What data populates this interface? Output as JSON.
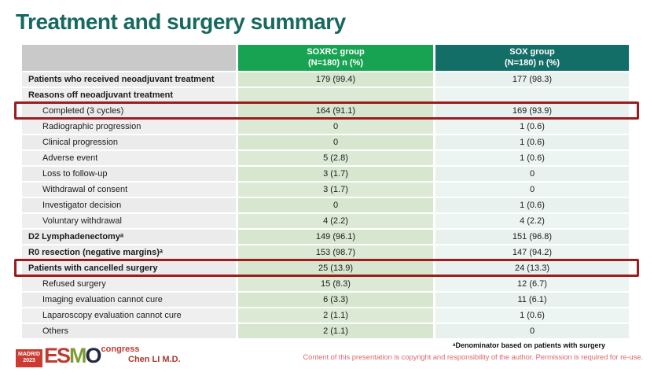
{
  "title": "Treatment and surgery summary",
  "table": {
    "columns": [
      {
        "name": "",
        "sub": ""
      },
      {
        "name": "SOXRC group",
        "sub": "(N=180)  n (%)"
      },
      {
        "name": "SOX group",
        "sub": "(N=180)  n (%)"
      }
    ],
    "rows": [
      {
        "label": "Patients who received neoadjuvant treatment",
        "soxrc": "179 (99.4)",
        "sox": "177 (98.3)",
        "bold": true,
        "indent": false,
        "highlight": false
      },
      {
        "label": "Reasons off neoadjuvant treatment",
        "soxrc": "",
        "sox": "",
        "bold": true,
        "indent": false,
        "highlight": false
      },
      {
        "label": "Completed (3 cycles)",
        "soxrc": "164 (91.1)",
        "sox": "169 (93.9)",
        "bold": false,
        "indent": true,
        "highlight": true
      },
      {
        "label": "Radiographic progression",
        "soxrc": "0",
        "sox": "1 (0.6)",
        "bold": false,
        "indent": true,
        "highlight": false
      },
      {
        "label": "Clinical progression",
        "soxrc": "0",
        "sox": "1 (0.6)",
        "bold": false,
        "indent": true,
        "highlight": false
      },
      {
        "label": "Adverse event",
        "soxrc": "5 (2.8)",
        "sox": "1 (0.6)",
        "bold": false,
        "indent": true,
        "highlight": false
      },
      {
        "label": "Loss to follow-up",
        "soxrc": "3 (1.7)",
        "sox": "0",
        "bold": false,
        "indent": true,
        "highlight": false
      },
      {
        "label": "Withdrawal of consent",
        "soxrc": "3 (1.7)",
        "sox": "0",
        "bold": false,
        "indent": true,
        "highlight": false
      },
      {
        "label": "Investigator decision",
        "soxrc": "0",
        "sox": "1 (0.6)",
        "bold": false,
        "indent": true,
        "highlight": false
      },
      {
        "label": "Voluntary withdrawal",
        "soxrc": "4 (2.2)",
        "sox": "4 (2.2)",
        "bold": false,
        "indent": true,
        "highlight": false
      },
      {
        "label": "D2 Lymphadenectomyᵃ",
        "soxrc": "149 (96.1)",
        "sox": "151 (96.8)",
        "bold": true,
        "indent": false,
        "highlight": false
      },
      {
        "label": "R0 resection (negative margins)ᵃ",
        "soxrc": "153 (98.7)",
        "sox": "147 (94.2)",
        "bold": true,
        "indent": false,
        "highlight": false
      },
      {
        "label": "Patients with cancelled surgery",
        "soxrc": "25 (13.9)",
        "sox": "24 (13.3)",
        "bold": true,
        "indent": false,
        "highlight": true
      },
      {
        "label": "Refused surgery",
        "soxrc": "15 (8.3)",
        "sox": "12 (6.7)",
        "bold": false,
        "indent": true,
        "highlight": false
      },
      {
        "label": "Imaging evaluation cannot cure",
        "soxrc": "6 (3.3)",
        "sox": "11 (6.1)",
        "bold": false,
        "indent": true,
        "highlight": false
      },
      {
        "label": "Laparoscopy evaluation cannot cure",
        "soxrc": "2 (1.1)",
        "sox": "1 (0.6)",
        "bold": false,
        "indent": true,
        "highlight": false
      },
      {
        "label": "Others",
        "soxrc": "2 (1.1)",
        "sox": "0",
        "bold": false,
        "indent": true,
        "highlight": false
      }
    ]
  },
  "footer": {
    "footnote": "ᵃDenominator based on patients with surgery",
    "copyright": "Content of this presentation is copyright and responsibility of the author. Permission is required for re-use.",
    "author": "Chen LI M.D.",
    "logo": {
      "city": "MADRID",
      "year": "2023",
      "esmo": [
        "E",
        "S",
        "M",
        "O"
      ],
      "congress": "congress"
    }
  },
  "colors": {
    "title_teal": "#17695f",
    "soxrc_header_green": "#17a351",
    "sox_header_teal": "#146e68",
    "highlight_red": "#9c1d1d",
    "copyright_pink": "#dc6a70",
    "logo_red": "#bf3a30"
  }
}
